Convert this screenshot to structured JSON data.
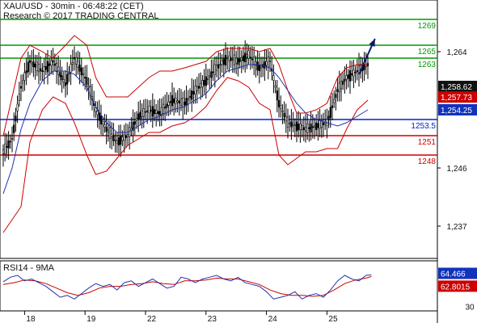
{
  "header": {
    "title_line1": "XAU/USD - 30min - 06:48:22 (CET)",
    "title_line2": "Research © 2017 TRADING CENTRAL"
  },
  "colors": {
    "candle": "#000000",
    "bands": "#cc0000",
    "ma": "#2233aa",
    "support": "#cc0000",
    "pivot": "#0022cc",
    "resistance": "#009900",
    "arrow": "#0a1a6a",
    "rsi": "#2233aa",
    "rsi_ma": "#cc0000",
    "badge_dark": "#111111",
    "badge_red": "#cc0000",
    "badge_blue": "#1133bb"
  },
  "chart_data": [
    {
      "type": "candlestick",
      "title": "XAU/USD - 30min - 06:48:22 (CET)",
      "ylim": [
        1232,
        1272
      ],
      "y_ticks": [
        "1,264",
        "1,246",
        "1,237"
      ],
      "x_ticks": [
        "18",
        "19",
        "22",
        "23",
        "24",
        "25"
      ],
      "series_path": {
        "close": [
          [
            0,
            1248.5
          ],
          [
            5,
            1250.5
          ],
          [
            10,
            1258.5
          ],
          [
            15,
            1262.5
          ],
          [
            22,
            1261
          ],
          [
            28,
            1262.5
          ],
          [
            35,
            1259
          ],
          [
            40,
            1263
          ],
          [
            47,
            1259.5
          ],
          [
            52,
            1255
          ],
          [
            58,
            1252
          ],
          [
            64,
            1250
          ],
          [
            70,
            1251
          ],
          [
            76,
            1254
          ],
          [
            82,
            1255
          ],
          [
            88,
            1254.5
          ],
          [
            95,
            1256.5
          ],
          [
            102,
            1256
          ],
          [
            108,
            1258
          ],
          [
            114,
            1259.5
          ],
          [
            120,
            1261.5
          ],
          [
            126,
            1263
          ],
          [
            132,
            1262.5
          ],
          [
            138,
            1263.5
          ],
          [
            144,
            1261.5
          ],
          [
            150,
            1262.5
          ],
          [
            155,
            1256
          ],
          [
            160,
            1253
          ],
          [
            165,
            1252.5
          ],
          [
            170,
            1252
          ],
          [
            176,
            1252.5
          ],
          [
            182,
            1253
          ],
          [
            188,
            1258
          ],
          [
            193,
            1260
          ],
          [
            199,
            1261
          ],
          [
            205,
            1262
          ]
        ],
        "upper_band": [
          [
            0,
            1251
          ],
          [
            5,
            1257
          ],
          [
            10,
            1263
          ],
          [
            15,
            1265
          ],
          [
            22,
            1264
          ],
          [
            28,
            1263
          ],
          [
            35,
            1265
          ],
          [
            40,
            1266.5
          ],
          [
            47,
            1265
          ],
          [
            52,
            1260
          ],
          [
            58,
            1257
          ],
          [
            64,
            1257
          ],
          [
            70,
            1257
          ],
          [
            76,
            1258.5
          ],
          [
            82,
            1260
          ],
          [
            88,
            1261
          ],
          [
            95,
            1261
          ],
          [
            102,
            1261.5
          ],
          [
            108,
            1262
          ],
          [
            114,
            1262.5
          ],
          [
            120,
            1264
          ],
          [
            126,
            1264.5
          ],
          [
            132,
            1264.5
          ],
          [
            138,
            1264.5
          ],
          [
            144,
            1264
          ],
          [
            150,
            1264.5
          ],
          [
            155,
            1262
          ],
          [
            160,
            1258
          ],
          [
            165,
            1254.5
          ],
          [
            170,
            1254.5
          ],
          [
            176,
            1255
          ],
          [
            182,
            1256
          ],
          [
            188,
            1260
          ],
          [
            193,
            1261.5
          ],
          [
            199,
            1262
          ],
          [
            205,
            1262
          ]
        ],
        "lower_band": [
          [
            0,
            1236
          ],
          [
            5,
            1238
          ],
          [
            10,
            1240
          ],
          [
            15,
            1250
          ],
          [
            22,
            1255
          ],
          [
            28,
            1257
          ],
          [
            35,
            1256
          ],
          [
            40,
            1253
          ],
          [
            47,
            1248
          ],
          [
            52,
            1245
          ],
          [
            58,
            1245.5
          ],
          [
            64,
            1247.5
          ],
          [
            70,
            1249.5
          ],
          [
            76,
            1250.5
          ],
          [
            82,
            1251.5
          ],
          [
            88,
            1251.5
          ],
          [
            95,
            1252.5
          ],
          [
            102,
            1253
          ],
          [
            108,
            1254
          ],
          [
            114,
            1255.5
          ],
          [
            120,
            1258
          ],
          [
            126,
            1260
          ],
          [
            132,
            1259.5
          ],
          [
            138,
            1258.5
          ],
          [
            144,
            1256
          ],
          [
            150,
            1255
          ],
          [
            155,
            1248
          ],
          [
            160,
            1246.5
          ],
          [
            165,
            1247.5
          ],
          [
            170,
            1248.5
          ],
          [
            176,
            1248.5
          ],
          [
            182,
            1249
          ],
          [
            188,
            1249
          ],
          [
            193,
            1252
          ],
          [
            199,
            1255
          ],
          [
            205,
            1256.5
          ]
        ],
        "moving_average": [
          [
            0,
            1242
          ],
          [
            5,
            1246
          ],
          [
            10,
            1252
          ],
          [
            15,
            1256
          ],
          [
            22,
            1259.5
          ],
          [
            28,
            1261
          ],
          [
            35,
            1261
          ],
          [
            40,
            1260.5
          ],
          [
            47,
            1258.5
          ],
          [
            52,
            1255.5
          ],
          [
            58,
            1253
          ],
          [
            64,
            1251.5
          ],
          [
            70,
            1251.5
          ],
          [
            76,
            1252.5
          ],
          [
            82,
            1253.5
          ],
          [
            88,
            1254
          ],
          [
            95,
            1255
          ],
          [
            102,
            1255.5
          ],
          [
            108,
            1256.5
          ],
          [
            114,
            1257.5
          ],
          [
            120,
            1259.5
          ],
          [
            126,
            1261
          ],
          [
            132,
            1261.5
          ],
          [
            138,
            1262
          ],
          [
            144,
            1262
          ],
          [
            150,
            1261.5
          ],
          [
            155,
            1260
          ],
          [
            160,
            1258
          ],
          [
            165,
            1256
          ],
          [
            170,
            1254.5
          ],
          [
            176,
            1253.5
          ],
          [
            182,
            1253
          ],
          [
            188,
            1252.5
          ],
          [
            193,
            1253
          ],
          [
            199,
            1254
          ],
          [
            205,
            1255
          ]
        ],
        "forecast_arrow": [
          [
            200,
            1260.5
          ],
          [
            209,
            1266
          ]
        ]
      },
      "levels": {
        "support": [
          "1248",
          "1251"
        ],
        "pivot": [
          "1253.5"
        ],
        "resistance": [
          "1263",
          "1265",
          "1269"
        ]
      },
      "price_badges": {
        "last_price": "1,258.62",
        "band_price": "1,257.73",
        "ma_price": "1,254.25"
      }
    },
    {
      "type": "line",
      "title": "RSI14 - 9MA",
      "ylim": [
        25,
        80
      ],
      "y_ticks": [
        "30"
      ],
      "series_path": {
        "rsi": [
          [
            0,
            57
          ],
          [
            4,
            62
          ],
          [
            8,
            64
          ],
          [
            12,
            58
          ],
          [
            16,
            60
          ],
          [
            20,
            56
          ],
          [
            24,
            52
          ],
          [
            28,
            46
          ],
          [
            32,
            40
          ],
          [
            36,
            42
          ],
          [
            40,
            38
          ],
          [
            44,
            44
          ],
          [
            48,
            50
          ],
          [
            52,
            55
          ],
          [
            56,
            52
          ],
          [
            60,
            54
          ],
          [
            64,
            48
          ],
          [
            68,
            56
          ],
          [
            72,
            58
          ],
          [
            76,
            52
          ],
          [
            80,
            56
          ],
          [
            84,
            60
          ],
          [
            88,
            55
          ],
          [
            92,
            50
          ],
          [
            96,
            52
          ],
          [
            100,
            62
          ],
          [
            104,
            60
          ],
          [
            108,
            56
          ],
          [
            112,
            60
          ],
          [
            116,
            62
          ],
          [
            120,
            64
          ],
          [
            124,
            60
          ],
          [
            128,
            58
          ],
          [
            132,
            62
          ],
          [
            136,
            56
          ],
          [
            140,
            54
          ],
          [
            144,
            52
          ],
          [
            148,
            46
          ],
          [
            152,
            38
          ],
          [
            156,
            40
          ],
          [
            160,
            42
          ],
          [
            164,
            46
          ],
          [
            168,
            38
          ],
          [
            172,
            42
          ],
          [
            176,
            44
          ],
          [
            180,
            40
          ],
          [
            184,
            48
          ],
          [
            188,
            58
          ],
          [
            192,
            64
          ],
          [
            196,
            60
          ],
          [
            200,
            58
          ],
          [
            204,
            64
          ],
          [
            207,
            64.466
          ]
        ],
        "rsi_ma": [
          [
            0,
            54
          ],
          [
            6,
            56
          ],
          [
            12,
            59
          ],
          [
            18,
            58
          ],
          [
            24,
            55
          ],
          [
            30,
            50
          ],
          [
            36,
            45
          ],
          [
            42,
            42
          ],
          [
            48,
            45
          ],
          [
            54,
            50
          ],
          [
            60,
            52
          ],
          [
            66,
            52
          ],
          [
            72,
            54
          ],
          [
            78,
            55
          ],
          [
            84,
            57
          ],
          [
            90,
            55
          ],
          [
            96,
            54
          ],
          [
            102,
            58
          ],
          [
            108,
            58
          ],
          [
            114,
            59
          ],
          [
            120,
            61
          ],
          [
            126,
            60
          ],
          [
            132,
            60
          ],
          [
            138,
            57
          ],
          [
            144,
            54
          ],
          [
            150,
            48
          ],
          [
            156,
            44
          ],
          [
            162,
            42
          ],
          [
            168,
            42
          ],
          [
            174,
            41
          ],
          [
            180,
            42
          ],
          [
            186,
            48
          ],
          [
            192,
            55
          ],
          [
            198,
            59
          ],
          [
            204,
            61
          ],
          [
            207,
            62.8015
          ]
        ]
      },
      "value_badges": {
        "rsi": "64.466",
        "rsi_ma": "62.8015"
      }
    }
  ]
}
